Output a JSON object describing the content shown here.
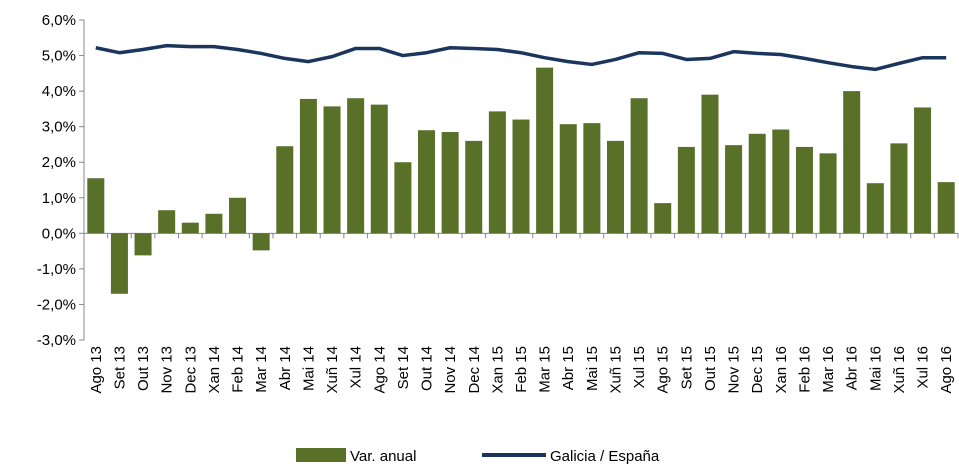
{
  "chart_data": {
    "type": "bar_line",
    "categories": [
      "Ago 13",
      "Set 13",
      "Out 13",
      "Nov 13",
      "Dec 13",
      "Xan 14",
      "Feb 14",
      "Mar 14",
      "Abr 14",
      "Mai 14",
      "Xuñ 14",
      "Xul 14",
      "Ago 14",
      "Set 14",
      "Out 14",
      "Nov 14",
      "Dec 14",
      "Xan 15",
      "Feb 15",
      "Mar 15",
      "Abr 15",
      "Mai 15",
      "Xuñ 15",
      "Xul 15",
      "Ago 15",
      "Set 15",
      "Out 15",
      "Nov 15",
      "Dec 15",
      "Xan 16",
      "Feb 16",
      "Mar 16",
      "Abr 16",
      "Mai 16",
      "Xuñ 16",
      "Xul 16",
      "Ago 16"
    ],
    "series": [
      {
        "name": "Var. anual",
        "type": "bar",
        "color": "#587028",
        "values": [
          1.55,
          -1.7,
          -0.62,
          0.65,
          0.3,
          0.55,
          1.0,
          -0.48,
          2.45,
          3.78,
          3.57,
          3.8,
          3.62,
          2.0,
          2.9,
          2.85,
          2.6,
          3.43,
          3.2,
          4.66,
          3.07,
          3.1,
          2.6,
          3.8,
          0.85,
          2.43,
          3.9,
          2.48,
          2.8,
          2.92,
          2.43,
          2.25,
          4.0,
          1.41,
          2.53,
          3.54,
          1.44
        ]
      },
      {
        "name": "Galicia / España",
        "type": "line",
        "color": "#1b365d",
        "values": [
          5.22,
          5.08,
          5.17,
          5.28,
          5.25,
          5.25,
          5.17,
          5.06,
          4.92,
          4.83,
          4.97,
          5.2,
          5.2,
          5.0,
          5.08,
          5.22,
          5.2,
          5.17,
          5.08,
          4.94,
          4.83,
          4.75,
          4.89,
          5.08,
          5.06,
          4.89,
          4.92,
          5.11,
          5.06,
          5.03,
          4.92,
          4.8,
          4.69,
          4.61,
          4.78,
          4.94,
          4.94
        ]
      }
    ],
    "ylim": [
      -3,
      6
    ],
    "yticks": [
      {
        "value": -3,
        "label": "-3,0%"
      },
      {
        "value": -2,
        "label": "-2,0%"
      },
      {
        "value": -1,
        "label": "-1,0%"
      },
      {
        "value": 0,
        "label": "0,0%"
      },
      {
        "value": 1,
        "label": "1,0%"
      },
      {
        "value": 2,
        "label": "2,0%"
      },
      {
        "value": 3,
        "label": "3,0%"
      },
      {
        "value": 4,
        "label": "4,0%"
      },
      {
        "value": 5,
        "label": "5,0%"
      },
      {
        "value": 6,
        "label": "6,0%"
      }
    ],
    "grid": false,
    "legend": "bottom"
  }
}
